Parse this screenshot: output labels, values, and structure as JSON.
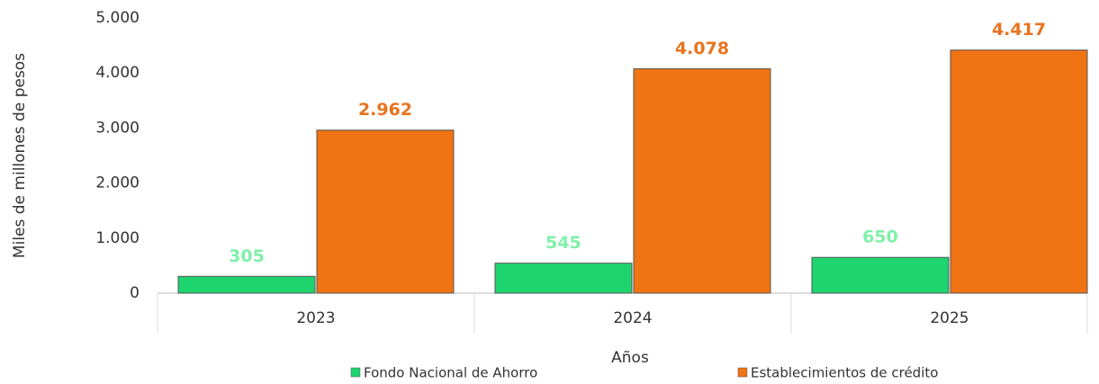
{
  "chart_data": {
    "type": "bar",
    "categories": [
      "2023",
      "2024",
      "2025"
    ],
    "series": [
      {
        "name": "Fondo Nacional de Ahorro",
        "color": "#1ed46e",
        "label_color": "#7ef0a8",
        "values": [
          305,
          545,
          650
        ],
        "value_labels": [
          "305",
          "545",
          "650"
        ]
      },
      {
        "name": "Establecimientos de crédito",
        "color": "#f07314",
        "label_color": "#e8731e",
        "values": [
          2962,
          4078,
          4417
        ],
        "value_labels": [
          "2.962",
          "4.078",
          "4.417"
        ]
      }
    ],
    "ylim": [
      0,
      5000
    ],
    "yticks": [
      0,
      {
        "value": 1000,
        "label": "1.000"
      },
      {
        "value": 2000,
        "label": "2.000"
      },
      {
        "value": 3000,
        "label": "3.000"
      },
      {
        "value": 4000,
        "label": "4.000"
      },
      {
        "value": 5000,
        "label": "5.000"
      }
    ],
    "xlabel": "Años",
    "ylabel": "Miles de millones de pesos",
    "legend": "bottom"
  }
}
